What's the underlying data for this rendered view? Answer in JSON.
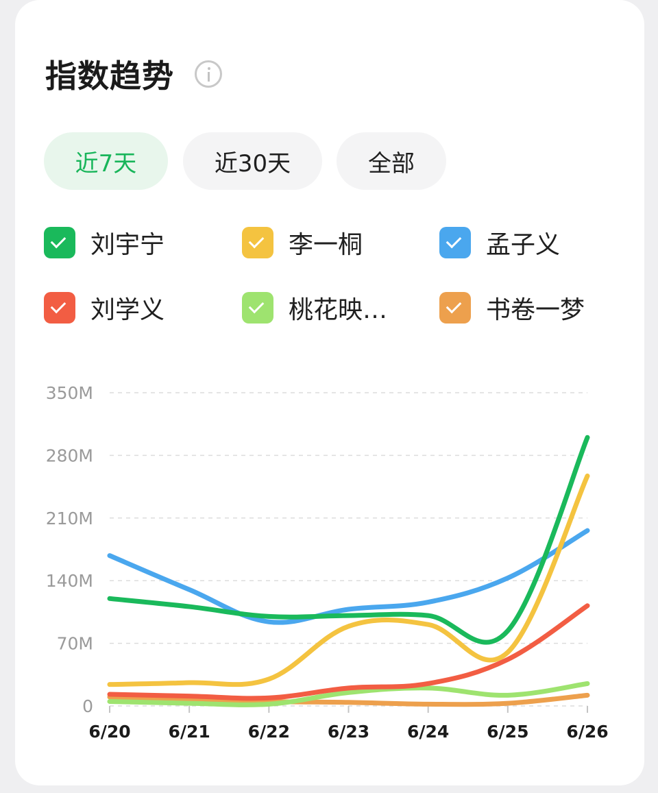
{
  "header": {
    "title": "指数趋势",
    "info_icon": "info-icon"
  },
  "ranges": [
    {
      "label": "近7天",
      "active": true
    },
    {
      "label": "近30天",
      "active": false
    },
    {
      "label": "全部",
      "active": false
    }
  ],
  "legend": [
    {
      "label": "刘宇宁",
      "color": "#1ab95b",
      "checked": true
    },
    {
      "label": "李一桐",
      "color": "#f4c340",
      "checked": true
    },
    {
      "label": "孟子义",
      "color": "#4aa7ee",
      "checked": true
    },
    {
      "label": "刘学义",
      "color": "#f25d43",
      "checked": true
    },
    {
      "label": "桃花映…",
      "color": "#9ee36f",
      "checked": true
    },
    {
      "label": "书卷一梦",
      "color": "#eda04d",
      "checked": true
    }
  ],
  "chart_data": {
    "type": "line",
    "x": [
      "6/20",
      "6/21",
      "6/22",
      "6/23",
      "6/24",
      "6/25",
      "6/26"
    ],
    "y_ticks": [
      "0",
      "70M",
      "140M",
      "210M",
      "280M",
      "350M"
    ],
    "ylim": [
      0,
      350
    ],
    "grid": true,
    "series": [
      {
        "name": "刘宇宁",
        "color": "#1ab95b",
        "values": [
          120,
          111,
          100,
          101,
          101,
          84,
          300
        ]
      },
      {
        "name": "李一桐",
        "color": "#f4c340",
        "values": [
          24,
          26,
          30,
          89,
          91,
          60,
          257
        ]
      },
      {
        "name": "孟子义",
        "color": "#4aa7ee",
        "values": [
          168,
          130,
          94,
          108,
          116,
          143,
          196
        ]
      },
      {
        "name": "刘学义",
        "color": "#f25d43",
        "values": [
          13,
          11,
          9,
          20,
          25,
          52,
          112
        ]
      },
      {
        "name": "桃花映…",
        "color": "#9ee36f",
        "values": [
          5,
          3,
          2,
          15,
          20,
          12,
          25
        ]
      },
      {
        "name": "书卷一梦",
        "color": "#eda04d",
        "values": [
          10,
          8,
          5,
          4,
          2,
          3,
          12
        ]
      }
    ]
  }
}
